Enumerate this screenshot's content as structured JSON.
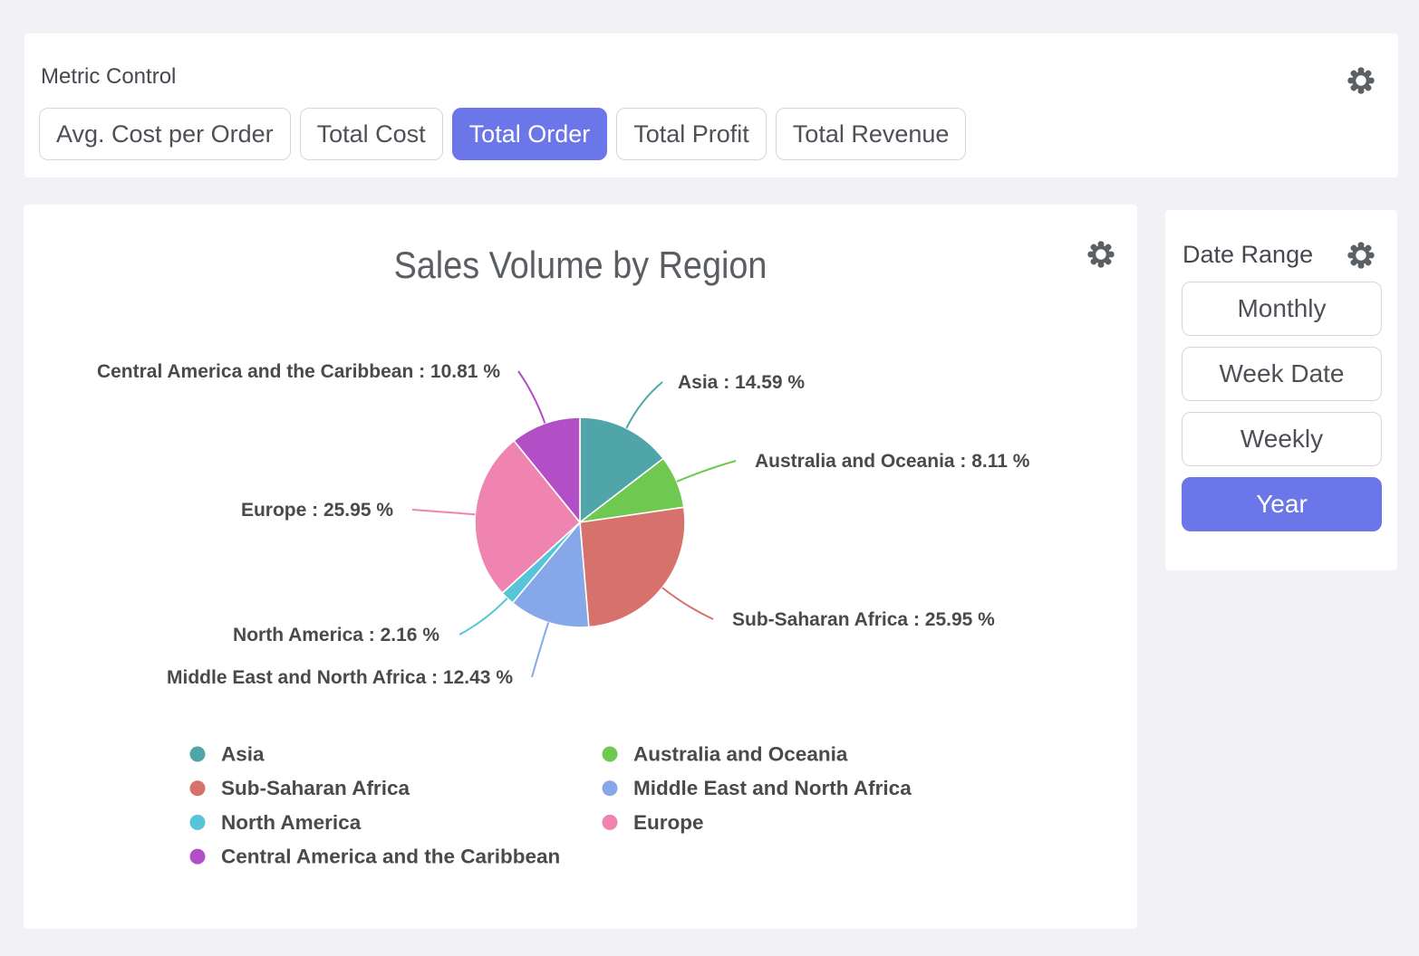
{
  "page": {
    "background": "#f1f1f6",
    "accent": "#6b76e8"
  },
  "metric_control": {
    "title": "Metric Control",
    "buttons": [
      {
        "label": "Avg. Cost per Order",
        "selected": false
      },
      {
        "label": "Total Cost",
        "selected": false
      },
      {
        "label": "Total Order",
        "selected": true
      },
      {
        "label": "Total Profit",
        "selected": false
      },
      {
        "label": "Total Revenue",
        "selected": false
      }
    ]
  },
  "date_range": {
    "title": "Date Range",
    "buttons": [
      {
        "label": "Monthly",
        "selected": false
      },
      {
        "label": "Week Date",
        "selected": false
      },
      {
        "label": "Weekly",
        "selected": false
      },
      {
        "label": "Year",
        "selected": true
      }
    ]
  },
  "chart_data": {
    "type": "pie",
    "title": "Sales Volume by Region",
    "label_format": "{name} : {value} %",
    "legend_position": "bottom",
    "series": [
      {
        "name": "Asia",
        "value": 14.59,
        "color": "#4FA5A8"
      },
      {
        "name": "Australia and Oceania",
        "value": 8.11,
        "color": "#6FC850"
      },
      {
        "name": "Sub-Saharan Africa",
        "value": 25.95,
        "color": "#D7716B"
      },
      {
        "name": "Middle East and North Africa",
        "value": 12.43,
        "color": "#86A7E8"
      },
      {
        "name": "North America",
        "value": 2.16,
        "color": "#57C5D7"
      },
      {
        "name": "Europe",
        "value": 25.95,
        "color": "#EF84B1"
      },
      {
        "name": "Central America and the Caribbean",
        "value": 10.81,
        "color": "#B24FC6"
      }
    ]
  }
}
